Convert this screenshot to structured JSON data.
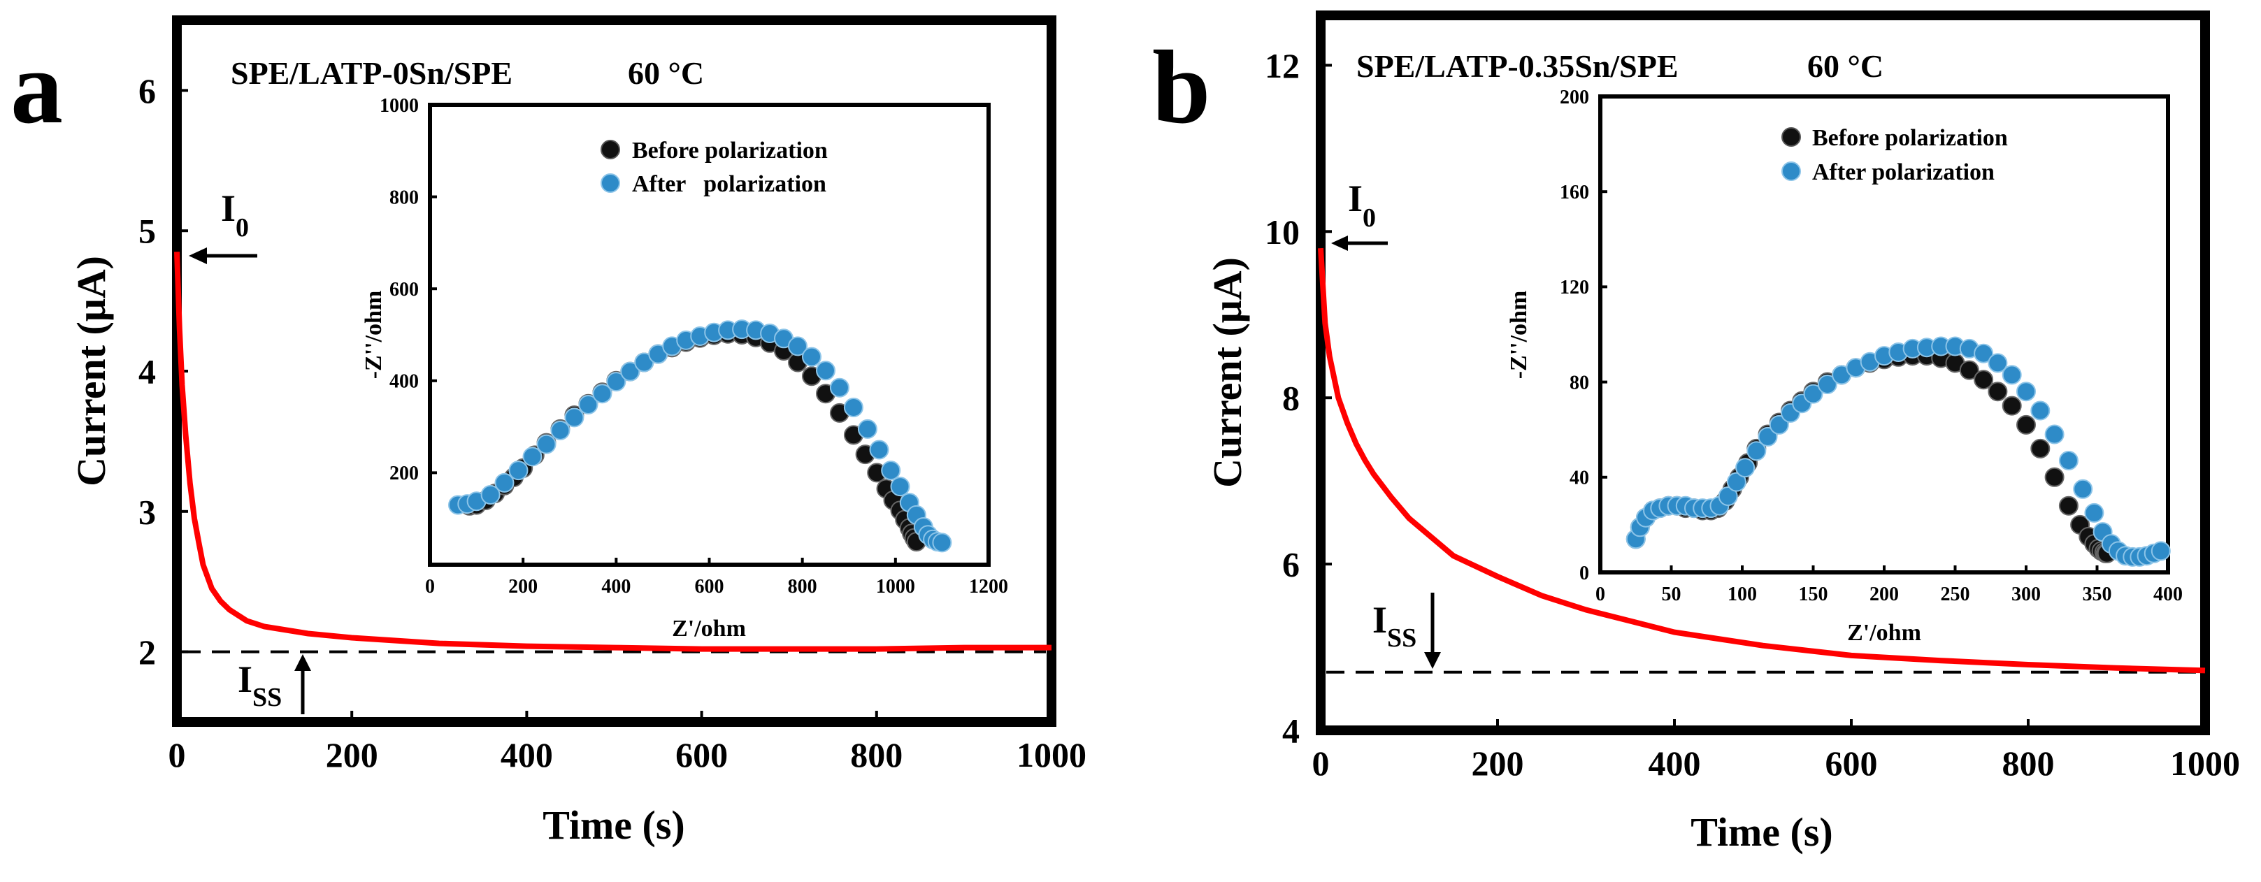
{
  "chart_data": [
    {
      "panel": "a",
      "type": "line",
      "title": "SPE/LATP-0Sn/SPE",
      "temperature": "60 °C",
      "xlabel": "Time (s)",
      "ylabel": "Current (μA)",
      "xlim": [
        0,
        1000
      ],
      "ylim": [
        1.5,
        6.5
      ],
      "xticks": [
        0,
        200,
        400,
        600,
        800,
        1000
      ],
      "yticks": [
        2,
        3,
        4,
        5,
        6
      ],
      "series": [
        {
          "name": "current",
          "color": "#ff0000",
          "x": [
            0,
            3,
            6,
            10,
            15,
            20,
            25,
            30,
            40,
            50,
            60,
            80,
            100,
            150,
            200,
            300,
            400,
            500,
            600,
            700,
            800,
            900,
            1000
          ],
          "y": [
            4.85,
            4.3,
            3.9,
            3.55,
            3.2,
            2.95,
            2.78,
            2.62,
            2.45,
            2.36,
            2.3,
            2.22,
            2.18,
            2.13,
            2.1,
            2.06,
            2.04,
            2.03,
            2.02,
            2.02,
            2.02,
            2.03,
            2.03
          ]
        }
      ],
      "reference_line": {
        "y": 2.0,
        "style": "dashed"
      },
      "annotations": {
        "i0": {
          "text": "I",
          "sub": "0",
          "x": 0,
          "y": 4.85
        },
        "iss": {
          "text": "I",
          "sub": "SS",
          "x": 145,
          "y": 2.0
        }
      },
      "inset": {
        "type": "scatter",
        "xlabel": "Z'/ohm",
        "ylabel": "-Z''/ohm",
        "xlim": [
          0,
          1200
        ],
        "ylim": [
          0,
          1000
        ],
        "xticks": [
          0,
          200,
          400,
          600,
          800,
          1000,
          1200
        ],
        "yticks": [
          200,
          400,
          600,
          800,
          1000
        ],
        "series": [
          {
            "name": "Before polarization",
            "color": "#111111",
            "x": [
              85,
              100,
              120,
              140,
              160,
              180,
              200,
              225,
              250,
              280,
              310,
              340,
              370,
              400,
              430,
              460,
              490,
              520,
              550,
              580,
              610,
              640,
              670,
              700,
              730,
              760,
              790,
              820,
              850,
              880,
              910,
              935,
              960,
              980,
              995,
              1010,
              1020,
              1030,
              1035,
              1040,
              1045
            ],
            "y": [
              128,
              130,
              140,
              155,
              172,
              190,
              210,
              238,
              265,
              295,
              325,
              350,
              375,
              400,
              420,
              440,
              458,
              472,
              484,
              493,
              499,
              502,
              500,
              494,
              482,
              465,
              440,
              410,
              372,
              330,
              282,
              240,
              200,
              165,
              140,
              118,
              98,
              80,
              68,
              58,
              50
            ]
          },
          {
            "name": "After   polarization",
            "color": "#2e8bc8",
            "x": [
              60,
              80,
              100,
              130,
              160,
              190,
              220,
              250,
              280,
              310,
              340,
              370,
              400,
              430,
              460,
              490,
              520,
              550,
              580,
              610,
              640,
              670,
              700,
              730,
              760,
              790,
              820,
              850,
              880,
              910,
              940,
              965,
              990,
              1010,
              1030,
              1045,
              1060,
              1070,
              1080,
              1090,
              1100
            ],
            "y": [
              130,
              132,
              138,
              152,
              178,
              205,
              235,
              262,
              292,
              320,
              348,
              372,
              398,
              420,
              440,
              458,
              475,
              488,
              497,
              505,
              510,
              512,
              510,
              503,
              492,
              475,
              452,
              422,
              385,
              342,
              295,
              250,
              205,
              170,
              135,
              108,
              82,
              65,
              55,
              50,
              48
            ]
          }
        ]
      }
    },
    {
      "panel": "b",
      "type": "line",
      "title": "SPE/LATP-0.35Sn/SPE",
      "temperature": "60 °C",
      "xlabel": "Time (s)",
      "ylabel": "Current (μA)",
      "xlim": [
        0,
        1000
      ],
      "ylim": [
        4,
        12.6
      ],
      "xticks": [
        0,
        200,
        400,
        600,
        800,
        1000
      ],
      "yticks": [
        4,
        6,
        8,
        10,
        12
      ],
      "series": [
        {
          "name": "current",
          "color": "#ff0000",
          "x": [
            0,
            5,
            10,
            20,
            30,
            40,
            50,
            60,
            80,
            100,
            150,
            200,
            250,
            300,
            400,
            500,
            600,
            700,
            800,
            900,
            1000
          ],
          "y": [
            9.8,
            8.9,
            8.5,
            8.0,
            7.7,
            7.45,
            7.25,
            7.08,
            6.8,
            6.55,
            6.1,
            5.85,
            5.62,
            5.45,
            5.18,
            5.02,
            4.9,
            4.84,
            4.79,
            4.75,
            4.72
          ]
        }
      ],
      "reference_line": {
        "y": 4.7,
        "style": "dashed"
      },
      "annotations": {
        "i0": {
          "text": "I",
          "sub": "0",
          "x": 0,
          "y": 9.8
        },
        "iss": {
          "text": "I",
          "sub": "SS",
          "x": 130,
          "y": 4.7
        }
      },
      "inset": {
        "type": "scatter",
        "xlabel": "Z'/ohm",
        "ylabel": "-Z''/ohm",
        "xlim": [
          0,
          400
        ],
        "ylim": [
          0,
          200
        ],
        "xticks": [
          0,
          50,
          100,
          150,
          200,
          250,
          300,
          350,
          400
        ],
        "yticks": [
          0,
          40,
          80,
          120,
          160,
          200
        ],
        "series": [
          {
            "name": "Before polarization",
            "color": "#111111",
            "x": [
              25,
              28,
              32,
              37,
              42,
              48,
              54,
              60,
              66,
              72,
              78,
              83,
              88,
              93,
              98,
              104,
              110,
              118,
              126,
              134,
              142,
              150,
              160,
              170,
              180,
              190,
              200,
              210,
              220,
              230,
              240,
              250,
              260,
              270,
              280,
              290,
              300,
              310,
              320,
              330,
              338,
              344,
              348,
              351,
              353,
              355,
              356,
              357
            ],
            "y": [
              14,
              19,
              23,
              26,
              27,
              28,
              28,
              27,
              27,
              26,
              26,
              27,
              30,
              35,
              40,
              46,
              52,
              58,
              63,
              68,
              72,
              76,
              80,
              83,
              86,
              88,
              89.5,
              90.5,
              91,
              91,
              90,
              88,
              85,
              81,
              76,
              70,
              62,
              52,
              40,
              28,
              20,
              15,
              12,
              10,
              9,
              8.5,
              8,
              8
            ]
          },
          {
            "name": "After polarization",
            "color": "#2e8bc8",
            "x": [
              25,
              28,
              32,
              37,
              42,
              48,
              54,
              60,
              66,
              72,
              78,
              84,
              90,
              96,
              102,
              110,
              118,
              126,
              134,
              142,
              150,
              160,
              170,
              180,
              190,
              200,
              210,
              220,
              230,
              240,
              250,
              260,
              270,
              280,
              290,
              300,
              310,
              320,
              330,
              340,
              348,
              354,
              360,
              365,
              370,
              375,
              380,
              385,
              390,
              395
            ],
            "y": [
              14,
              19,
              23,
              26,
              27,
              28,
              28,
              28,
              27,
              27,
              27,
              28,
              32,
              38,
              44,
              51,
              57,
              62,
              67,
              71,
              75,
              79,
              83,
              86,
              88.5,
              91,
              92.5,
              94,
              94.5,
              95,
              95,
              94,
              92,
              88,
              83,
              76,
              68,
              58,
              47,
              35,
              25,
              17,
              12,
              9,
              7,
              6.5,
              6.5,
              7,
              8,
              9
            ]
          }
        ]
      }
    }
  ]
}
